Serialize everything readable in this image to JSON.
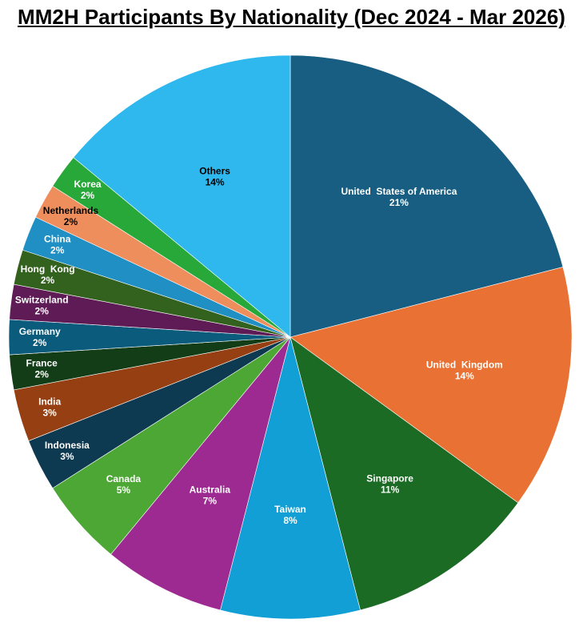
{
  "chart_data": {
    "type": "pie",
    "title": "MM2H Participants By Nationality (Dec 2024 - Mar 2026)",
    "start": "top",
    "direction": "clockwise",
    "slices": [
      {
        "label": "United  States of America",
        "value": 21,
        "display": "21%",
        "color": "#175e82",
        "text_color": "#ffffff"
      },
      {
        "label": "United  Kingdom",
        "value": 14,
        "display": "14%",
        "color": "#e87133",
        "text_color": "#ffffff"
      },
      {
        "label": "Singapore",
        "value": 11,
        "display": "11%",
        "color": "#1b6b24",
        "text_color": "#ffffff"
      },
      {
        "label": "Taiwan",
        "value": 8,
        "display": "8%",
        "color": "#119fd6",
        "text_color": "#ffffff"
      },
      {
        "label": "Australia",
        "value": 7,
        "display": "7%",
        "color": "#9c2a91",
        "text_color": "#ffffff"
      },
      {
        "label": "Canada",
        "value": 5,
        "display": "5%",
        "color": "#4ca734",
        "text_color": "#ffffff"
      },
      {
        "label": "Indonesia",
        "value": 3,
        "display": "3%",
        "color": "#0e3a51",
        "text_color": "#ffffff"
      },
      {
        "label": "India",
        "value": 3,
        "display": "3%",
        "color": "#963f12",
        "text_color": "#ffffff"
      },
      {
        "label": "France",
        "value": 2,
        "display": "2%",
        "color": "#123d16",
        "text_color": "#ffffff"
      },
      {
        "label": "Germany",
        "value": 2,
        "display": "2%",
        "color": "#0b5b7d",
        "text_color": "#ffffff"
      },
      {
        "label": "Switzerland",
        "value": 2,
        "display": "2%",
        "color": "#5e1b55",
        "text_color": "#ffffff"
      },
      {
        "label": "Hong  Kong",
        "value": 2,
        "display": "2%",
        "color": "#33621f",
        "text_color": "#ffffff"
      },
      {
        "label": "China",
        "value": 2,
        "display": "2%",
        "color": "#1f8fc4",
        "text_color": "#ffffff"
      },
      {
        "label": "Netherlands",
        "value": 2,
        "display": "2%",
        "color": "#ee8e5d",
        "text_color": "#000000"
      },
      {
        "label": "Korea",
        "value": 2,
        "display": "2%",
        "color": "#29a83a",
        "text_color": "#ffffff"
      },
      {
        "label": "Others",
        "value": 14,
        "display": "14%",
        "color": "#2fb8ee",
        "text_color": "#000000"
      }
    ]
  }
}
